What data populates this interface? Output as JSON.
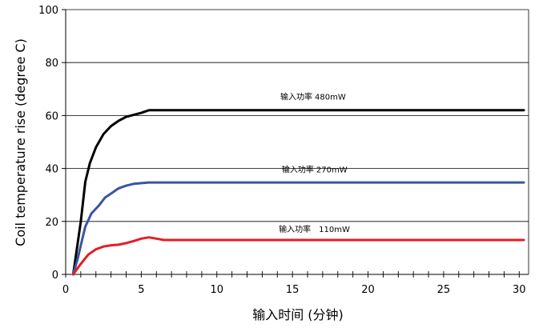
{
  "chart_data": {
    "type": "line",
    "xlabel": "输入时间 (分钟)",
    "ylabel": "Coil temperature rise (degree C)",
    "xlim": [
      0,
      30
    ],
    "ylim": [
      0,
      100
    ],
    "x_ticks": [
      0,
      5,
      10,
      15,
      20,
      25,
      30
    ],
    "y_ticks": [
      0,
      20,
      40,
      60,
      80,
      100
    ],
    "x_minor_step": 1,
    "grid": "horizontal",
    "legend": "none",
    "series": [
      {
        "color": "#000000",
        "points": [
          [
            0.5,
            0
          ],
          [
            1,
            20
          ],
          [
            1.3,
            35
          ],
          [
            1.6,
            42
          ],
          [
            2,
            48
          ],
          [
            2.5,
            53
          ],
          [
            3,
            56
          ],
          [
            3.5,
            58
          ],
          [
            4,
            59.5
          ],
          [
            5,
            61
          ],
          [
            5.5,
            62
          ],
          [
            10,
            62
          ],
          [
            15,
            62
          ],
          [
            20,
            62
          ],
          [
            25,
            62
          ],
          [
            30.3,
            62
          ]
        ]
      },
      {
        "color": "#3a55a0",
        "points": [
          [
            0.5,
            0
          ],
          [
            0.8,
            6
          ],
          [
            1,
            11
          ],
          [
            1.3,
            18
          ],
          [
            1.7,
            23
          ],
          [
            2.2,
            26
          ],
          [
            2.6,
            29
          ],
          [
            3,
            30.5
          ],
          [
            3.5,
            32.5
          ],
          [
            4,
            33.5
          ],
          [
            4.5,
            34.2
          ],
          [
            5.5,
            34.7
          ],
          [
            10,
            34.7
          ],
          [
            20,
            34.7
          ],
          [
            30.3,
            34.7
          ]
        ]
      },
      {
        "color": "#e31e24",
        "points": [
          [
            0.5,
            0
          ],
          [
            1,
            4
          ],
          [
            1.5,
            7.5
          ],
          [
            2,
            9.5
          ],
          [
            2.5,
            10.5
          ],
          [
            3,
            11
          ],
          [
            3.5,
            11.2
          ],
          [
            4,
            11.8
          ],
          [
            4.5,
            12.6
          ],
          [
            5,
            13.5
          ],
          [
            5.5,
            14
          ],
          [
            6,
            13.5
          ],
          [
            6.5,
            13
          ],
          [
            10,
            13
          ],
          [
            20,
            13
          ],
          [
            30.3,
            13
          ]
        ]
      }
    ],
    "annotations": [
      {
        "prefix": "输入功率",
        "value": "480mW",
        "x": 14.2,
        "y": 66
      },
      {
        "prefix": "输入功率",
        "value": "270mW",
        "x": 14.3,
        "y": 38.5
      },
      {
        "prefix": "输入功率",
        "value": "110mW",
        "x": 14.1,
        "y": 16
      }
    ]
  }
}
